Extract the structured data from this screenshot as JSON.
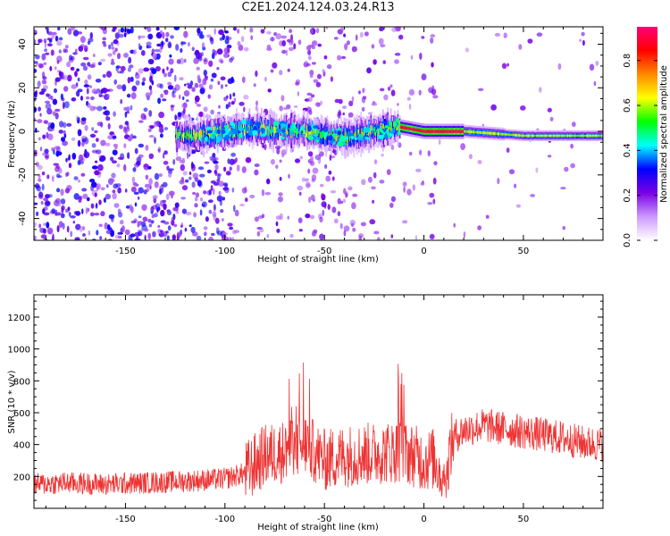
{
  "figure": {
    "title": "C2E1.2024.124.03.24.R13"
  },
  "chart_data": [
    {
      "type": "heatmap",
      "title": "C2E1.2024.124.03.24.R13",
      "xlabel": "Height of straight line (km)",
      "ylabel": "Frequency (Hz)",
      "xlim": [
        -196,
        90
      ],
      "ylim": [
        -50,
        48
      ],
      "xticks": [
        -150,
        -100,
        -50,
        0,
        50
      ],
      "yticks": [
        -40,
        -20,
        0,
        20,
        40
      ],
      "colorbar": {
        "label": "Normalized spectral amplitude",
        "range": [
          0.0,
          0.95
        ],
        "ticks": [
          0.0,
          0.2,
          0.4,
          0.6,
          0.8
        ],
        "colors": [
          "#ffffff",
          "#cc99ff",
          "#7a00e6",
          "#0000ff",
          "#00ffff",
          "#00ff00",
          "#ffff00",
          "#ff8800",
          "#ff0000",
          "#ff0077"
        ]
      },
      "ridge": [
        {
          "x": -115,
          "y": -2
        },
        {
          "x": -90,
          "y": 1
        },
        {
          "x": -60,
          "y": 0
        },
        {
          "x": -40,
          "y": -3
        },
        {
          "x": -20,
          "y": 1
        },
        {
          "x": -12,
          "y": 2
        },
        {
          "x": 0,
          "y": 0
        },
        {
          "x": 20,
          "y": 0
        },
        {
          "x": 50,
          "y": -2
        },
        {
          "x": 90,
          "y": -2
        }
      ],
      "grid": false
    },
    {
      "type": "line",
      "xlabel": "Height of straight line (km)",
      "ylabel": "SNR (10 * v/v)",
      "xlim": [
        -196,
        90
      ],
      "ylim": [
        0,
        1340
      ],
      "xticks": [
        -150,
        -100,
        -50,
        0,
        50
      ],
      "yticks": [
        200,
        400,
        600,
        800,
        1000,
        1200
      ],
      "color": "#ee3333",
      "series": [
        {
          "x": [
            -196,
            -180,
            -160,
            -140,
            -120,
            -100,
            -90,
            -80,
            -70,
            -60,
            -50,
            -40,
            -30,
            -20,
            -12,
            -5,
            0,
            5,
            10,
            15,
            20,
            30,
            40,
            50,
            60,
            70,
            80,
            90
          ],
          "values": [
            150,
            160,
            150,
            160,
            170,
            185,
            220,
            330,
            360,
            410,
            300,
            330,
            340,
            350,
            360,
            330,
            300,
            310,
            200,
            450,
            490,
            520,
            500,
            480,
            460,
            440,
            410,
            400
          ]
        }
      ],
      "grid": false
    }
  ]
}
